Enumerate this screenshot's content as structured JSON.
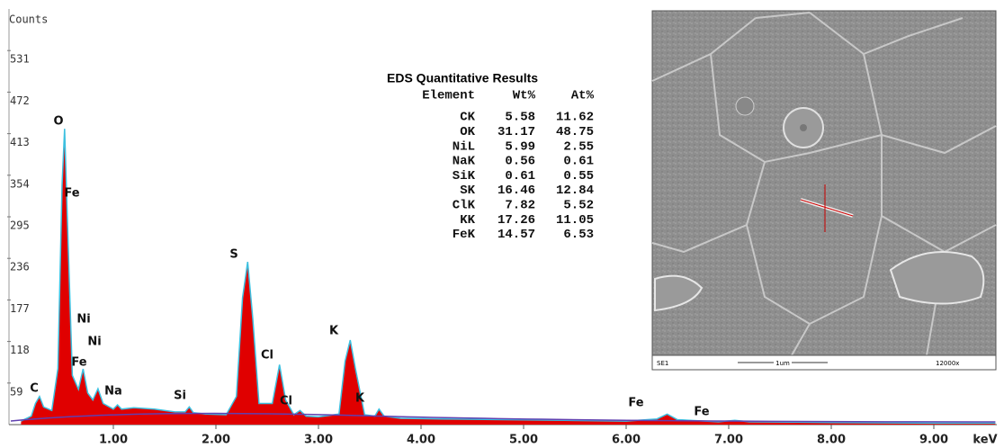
{
  "chart_data": {
    "type": "area",
    "y_label": "Counts",
    "x_label": "keV",
    "x": [
      0.1,
      0.2,
      0.24,
      0.28,
      0.32,
      0.4,
      0.46,
      0.5,
      0.525,
      0.55,
      0.6,
      0.66,
      0.705,
      0.75,
      0.8,
      0.85,
      0.9,
      1.0,
      1.04,
      1.08,
      1.2,
      1.4,
      1.6,
      1.7,
      1.74,
      1.78,
      1.9,
      2.1,
      2.2,
      2.26,
      2.31,
      2.36,
      2.42,
      2.55,
      2.62,
      2.68,
      2.76,
      2.82,
      2.88,
      3.0,
      3.2,
      3.26,
      3.31,
      3.36,
      3.45,
      3.55,
      3.59,
      3.64,
      3.8,
      4.2,
      4.8,
      5.4,
      6.0,
      6.3,
      6.4,
      6.5,
      6.9,
      7.06,
      7.2,
      8.0,
      9.0,
      9.6
    ],
    "values": [
      5,
      12,
      30,
      40,
      25,
      20,
      80,
      340,
      420,
      300,
      70,
      50,
      79,
      45,
      35,
      51,
      30,
      22,
      28,
      22,
      24,
      22,
      18,
      18,
      25,
      17,
      15,
      14,
      40,
      180,
      231,
      150,
      30,
      30,
      85,
      35,
      14,
      20,
      12,
      11,
      15,
      90,
      120,
      80,
      14,
      12,
      22,
      12,
      9,
      8,
      7,
      6,
      5,
      8,
      15,
      7,
      4,
      6,
      4,
      3,
      2,
      2
    ],
    "color": "#e00000",
    "outline_color": "#3cc0e0",
    "xlim": [
      0,
      9.6
    ],
    "ylim": [
      0,
      590
    ],
    "xticks": [
      {
        "value": 1,
        "label": "1.00"
      },
      {
        "value": 2,
        "label": "2.00"
      },
      {
        "value": 3,
        "label": "3.00"
      },
      {
        "value": 4,
        "label": "4.00"
      },
      {
        "value": 5,
        "label": "5.00"
      },
      {
        "value": 6,
        "label": "6.00"
      },
      {
        "value": 7,
        "label": "7.00"
      },
      {
        "value": 8,
        "label": "8.00"
      },
      {
        "value": 9,
        "label": "9.00"
      }
    ],
    "yticks": [
      59,
      118,
      177,
      236,
      295,
      354,
      413,
      472,
      531
    ],
    "peak_labels": [
      "C",
      "O",
      "Fe",
      "Ni",
      "Ni",
      "Fe",
      "Na",
      "Si",
      "S",
      "Cl",
      "Cl",
      "K",
      "K",
      "Fe",
      "Fe"
    ]
  },
  "results_table": {
    "title": "EDS Quantitative Results",
    "columns": [
      "Element",
      "Wt%",
      "At%"
    ],
    "rows": [
      [
        "CK",
        5.58,
        11.62
      ],
      [
        "OK",
        31.17,
        48.75
      ],
      [
        "NiL",
        5.99,
        2.55
      ],
      [
        "NaK",
        0.56,
        0.61
      ],
      [
        "SiK",
        0.61,
        0.55
      ],
      [
        "SK",
        16.46,
        12.84
      ],
      [
        "ClK",
        7.82,
        5.52
      ],
      [
        "KK",
        17.26,
        11.05
      ],
      [
        "FeK",
        14.57,
        6.53
      ]
    ]
  },
  "image_caption": {
    "detector": "SE1",
    "scale": "1um",
    "magnification": "12000x"
  }
}
